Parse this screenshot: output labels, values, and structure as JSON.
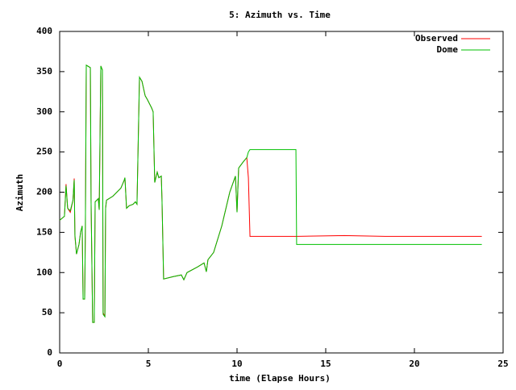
{
  "chart_data": {
    "type": "line",
    "title": "5: Azimuth vs. Time",
    "x_label": "time (Elapse Hours)",
    "y_label": "Azimuth",
    "x": [
      0,
      0.27,
      0.36,
      0.45,
      0.6,
      0.75,
      0.82,
      0.86,
      0.95,
      1.09,
      1.18,
      1.27,
      1.32,
      1.41,
      1.45,
      1.5,
      1.73,
      1.77,
      1.86,
      1.95,
      2.0,
      2.18,
      2.23,
      2.32,
      2.41,
      2.45,
      2.55,
      2.59,
      2.64,
      3.0,
      3.45,
      3.64,
      3.68,
      3.77,
      3.91,
      4.14,
      4.27,
      4.36,
      4.5,
      4.64,
      4.82,
      4.95,
      5.18,
      5.27,
      5.36,
      5.5,
      5.59,
      5.73,
      5.77,
      5.86,
      6.41,
      6.86,
      7.0,
      7.18,
      7.77,
      8.14,
      8.27,
      8.36,
      8.68,
      9.14,
      9.59,
      9.91,
      10.0,
      10.09,
      10.36,
      10.55,
      10.64,
      10.73,
      13.32,
      13.36,
      16.05,
      18.36,
      23.8
    ],
    "series": [
      {
        "name": "Observed",
        "color": "#ff0000",
        "values": [
          165,
          170,
          210,
          180,
          175,
          190,
          217,
          145,
          123,
          135,
          150,
          158,
          67,
          67,
          155,
          358,
          355,
          190,
          38,
          38,
          188,
          192,
          178,
          357,
          352,
          50,
          45,
          180,
          190,
          195,
          205,
          215,
          218,
          180,
          183,
          185,
          188,
          185,
          343,
          338,
          320,
          315,
          305,
          300,
          212,
          225,
          218,
          220,
          190,
          92,
          95,
          97,
          91,
          100,
          107,
          112,
          101,
          116,
          125,
          158,
          200,
          220,
          175,
          230,
          238,
          243,
          218,
          145,
          145,
          145,
          146,
          145,
          145
        ]
      },
      {
        "name": "Dome",
        "color": "#00c000",
        "values": [
          165,
          170,
          208,
          180,
          177,
          190,
          215,
          147,
          123,
          135,
          150,
          158,
          67,
          67,
          155,
          358,
          355,
          190,
          38,
          38,
          188,
          192,
          178,
          357,
          352,
          48,
          45,
          180,
          190,
          195,
          205,
          215,
          218,
          180,
          183,
          185,
          188,
          185,
          343,
          338,
          320,
          315,
          305,
          300,
          212,
          225,
          218,
          220,
          190,
          92,
          95,
          97,
          91,
          100,
          107,
          112,
          101,
          116,
          125,
          158,
          200,
          220,
          175,
          230,
          238,
          243,
          250,
          253,
          253,
          135,
          135,
          135,
          135
        ]
      }
    ],
    "xlim": [
      0,
      25
    ],
    "xticks": [
      0,
      5,
      10,
      15,
      20,
      25
    ],
    "ylim": [
      0,
      400
    ],
    "yticks": [
      0,
      50,
      100,
      150,
      200,
      250,
      300,
      350,
      400
    ],
    "legend": "top-right"
  }
}
